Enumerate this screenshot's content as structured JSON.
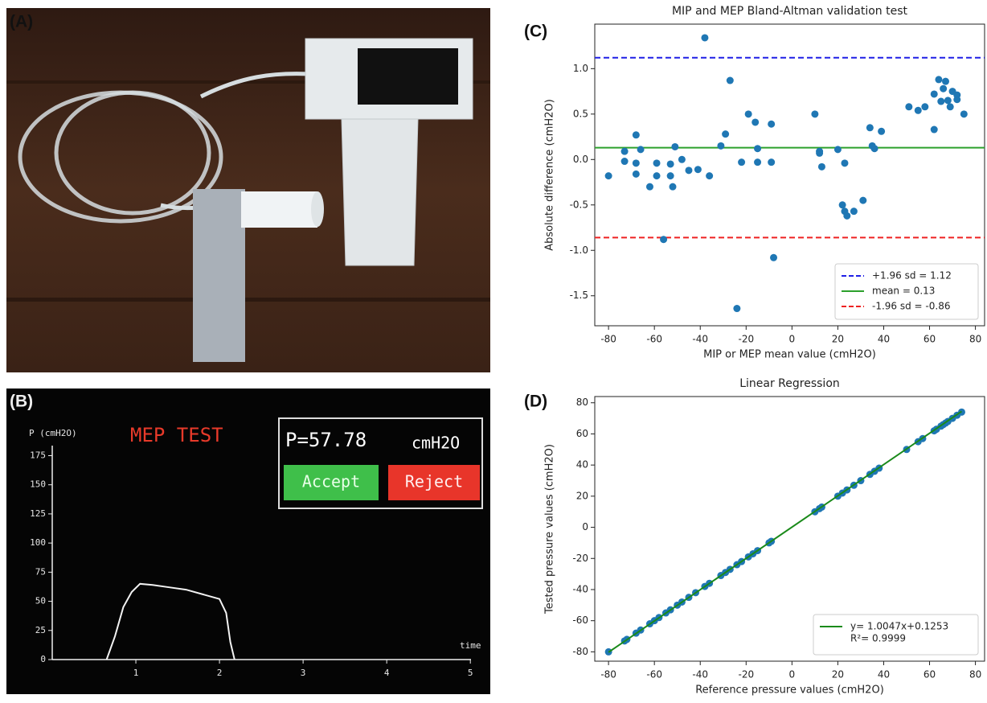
{
  "panels": [
    "(A)",
    "(B)",
    "(C)",
    "(D)"
  ],
  "chart_data": [
    {
      "type": "line",
      "title": "MEP TEST",
      "ylabel": "P (cmH2O)",
      "xlabel": "time",
      "readout": "P=57.78",
      "readout_unit": "cmH2O",
      "buttons": [
        "Accept",
        "Reject"
      ],
      "xlim": [
        0,
        5.2
      ],
      "ylim": [
        0,
        185
      ],
      "xticks": [
        1,
        2,
        3,
        4,
        5
      ],
      "yticks": [
        0,
        25,
        50,
        75,
        100,
        125,
        150,
        175
      ],
      "series": [
        {
          "color": "#f2f2f2",
          "x": [
            0.65,
            0.75,
            0.85,
            0.95,
            1.05,
            1.2,
            1.4,
            1.6,
            1.8,
            2.0,
            2.08,
            2.13,
            2.18
          ],
          "values": [
            0,
            20,
            45,
            58,
            65,
            64,
            62,
            60,
            56,
            52,
            40,
            15,
            0
          ]
        }
      ]
    },
    {
      "type": "scatter",
      "title": "MIP and MEP Bland-Altman validation test",
      "xlabel": "MIP or MEP mean value (cmH2O)",
      "ylabel": "Absolute difference (cmH2O)",
      "xlim": [
        -86,
        84
      ],
      "ylim": [
        -1.83,
        1.49
      ],
      "xticks": [
        -80,
        -60,
        -40,
        -20,
        0,
        20,
        40,
        60,
        80
      ],
      "yticks": [
        -1.5,
        {
          "value": -1,
          "label": "-1.0"
        },
        -0.5,
        {
          "value": 0,
          "label": "0.0"
        },
        0.5,
        {
          "value": 1,
          "label": "1.0"
        }
      ],
      "legend": "lower right",
      "hlines": [
        {
          "value": 1.12,
          "color": "#1f1fe6",
          "style": "dashed",
          "label": "+1.96 sd = 1.12"
        },
        {
          "value": 0.13,
          "color": "#2ca02c",
          "style": "solid",
          "label": "mean = 0.13"
        },
        {
          "value": -0.86,
          "color": "#ee2222",
          "style": "dashed",
          "label": "-1.96 sd = -0.86"
        }
      ],
      "series": [
        {
          "color": "#1f77b4",
          "x": [
            -80,
            -73,
            -73,
            -68,
            -68,
            -68,
            -66,
            -62,
            -59,
            -59,
            -56,
            -53,
            -53,
            -52,
            -51,
            -48,
            -45,
            -41,
            -38,
            -36,
            -31,
            -29,
            -27,
            -24,
            -22,
            -19,
            -16,
            -15,
            -15,
            -9,
            -9,
            -8,
            10,
            12,
            12,
            13,
            20,
            22,
            23,
            24,
            27,
            31,
            23,
            34,
            35,
            36,
            39,
            51,
            55,
            58,
            62,
            62,
            64,
            65,
            66,
            67,
            68,
            70,
            69,
            72,
            72,
            75
          ],
          "values": [
            -0.18,
            0.09,
            -0.02,
            0.27,
            -0.04,
            -0.16,
            0.11,
            -0.3,
            -0.04,
            -0.18,
            -0.88,
            -0.05,
            -0.18,
            -0.3,
            0.14,
            0,
            -0.12,
            -0.11,
            1.34,
            -0.18,
            0.15,
            0.28,
            0.87,
            -1.64,
            -0.03,
            0.5,
            0.41,
            0.12,
            -0.03,
            -0.03,
            0.39,
            -1.08,
            0.5,
            0.09,
            0.07,
            -0.08,
            0.11,
            -0.5,
            -0.57,
            -0.62,
            -0.57,
            -0.45,
            -0.04,
            0.35,
            0.15,
            0.12,
            0.31,
            0.58,
            0.54,
            0.58,
            0.72,
            0.33,
            0.88,
            0.64,
            0.78,
            0.86,
            0.65,
            0.75,
            0.58,
            0.71,
            0.66,
            0.5
          ]
        }
      ]
    },
    {
      "type": "scatter",
      "title": "Linear Regression",
      "xlabel": "Reference pressure values (cmH2O)",
      "ylabel": "Tested pressure values (cmH2O)",
      "xlim": [
        -86,
        84
      ],
      "ylim": [
        -86,
        84
      ],
      "xticks": [
        -80,
        -60,
        -40,
        -20,
        0,
        20,
        40,
        60,
        80
      ],
      "yticks": [
        -80,
        -60,
        -40,
        -20,
        0,
        20,
        40,
        60,
        80
      ],
      "legend": "lower right",
      "legend_note": "R²= 0.9999",
      "series": [
        {
          "color": "#1f77b4",
          "x": [
            -80,
            -73,
            -72,
            -68,
            -66,
            -62,
            -60,
            -58,
            -55,
            -53,
            -50,
            -48,
            -45,
            -42,
            -38,
            -36,
            -31,
            -29,
            -27,
            -24,
            -22,
            -19,
            -17,
            -15,
            -10,
            -9,
            10,
            12,
            13,
            20,
            22,
            24,
            27,
            30,
            34,
            36,
            38,
            50,
            55,
            57,
            62,
            63,
            65,
            66,
            67,
            68,
            70,
            72,
            74
          ],
          "values": [
            -80,
            -73,
            -72,
            -68,
            -66,
            -62,
            -60,
            -58,
            -55,
            -53,
            -50,
            -48,
            -45,
            -42,
            -38,
            -36,
            -31,
            -29,
            -27,
            -24,
            -22,
            -19,
            -17,
            -15,
            -10,
            -9,
            10,
            12,
            13,
            20,
            22,
            24,
            27,
            30,
            34,
            36,
            38,
            50,
            55,
            57,
            62,
            63,
            65,
            66,
            67,
            68,
            70,
            72,
            74
          ]
        },
        {
          "name": "y= 1.0047x+0.1253",
          "color": "#1a8a1a",
          "style": "line",
          "x": [
            -80,
            74
          ],
          "values": [
            -80.25,
            74.47
          ]
        }
      ]
    }
  ]
}
